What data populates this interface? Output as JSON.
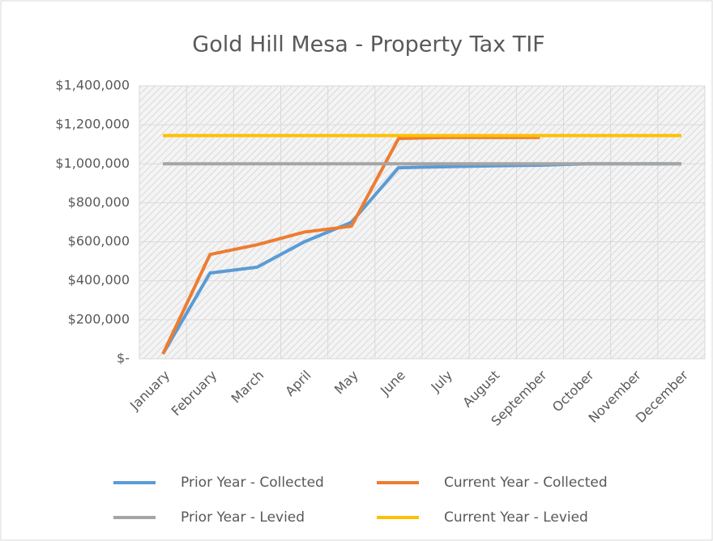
{
  "chart_data": {
    "type": "line",
    "title": "Gold Hill Mesa - Property Tax TIF",
    "categories": [
      "January",
      "February",
      "March",
      "April",
      "May",
      "June",
      "July",
      "August",
      "September",
      "October",
      "November",
      "December"
    ],
    "series": [
      {
        "name": "Prior Year - Collected",
        "color": "#5b9bd5",
        "values": [
          25000,
          440000,
          470000,
          600000,
          700000,
          980000,
          985000,
          990000,
          993000,
          1000000,
          1000000,
          1000000
        ]
      },
      {
        "name": "Current Year - Collected",
        "color": "#ed7d31",
        "values": [
          25000,
          535000,
          585000,
          650000,
          680000,
          1130000,
          1135000,
          1135000,
          1135000,
          null,
          null,
          null
        ]
      },
      {
        "name": "Prior Year - Levied",
        "color": "#a5a5a5",
        "values": [
          1000000,
          1000000,
          1000000,
          1000000,
          1000000,
          1000000,
          1000000,
          1000000,
          1000000,
          1000000,
          1000000,
          1000000
        ]
      },
      {
        "name": "Current Year - Levied",
        "color": "#ffc000",
        "values": [
          1145000,
          1145000,
          1145000,
          1145000,
          1145000,
          1145000,
          1145000,
          1145000,
          1145000,
          1145000,
          1145000,
          1145000
        ]
      }
    ],
    "ylim": [
      0,
      1400000
    ],
    "yticks": [
      {
        "value": 0,
        "label": "$-"
      },
      {
        "value": 200000,
        "label": "$200,000"
      },
      {
        "value": 400000,
        "label": "$400,000"
      },
      {
        "value": 600000,
        "label": "$600,000"
      },
      {
        "value": 800000,
        "label": "$800,000"
      },
      {
        "value": 1000000,
        "label": "$1,000,000"
      },
      {
        "value": 1200000,
        "label": "$1,200,000"
      },
      {
        "value": 1400000,
        "label": "$1,400,000"
      }
    ],
    "grid": true,
    "legend": "bottom"
  }
}
